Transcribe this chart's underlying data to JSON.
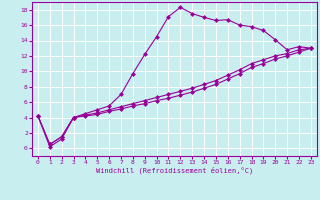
{
  "xlabel": "Windchill (Refroidissement éolien,°C)",
  "background_color": "#c8eef0",
  "grid_color": "#ffffff",
  "line_color": "#990099",
  "xlim": [
    -0.5,
    23.5
  ],
  "ylim": [
    -1,
    19
  ],
  "xticks": [
    0,
    1,
    2,
    3,
    4,
    5,
    6,
    7,
    8,
    9,
    10,
    11,
    12,
    13,
    14,
    15,
    16,
    17,
    18,
    19,
    20,
    21,
    22,
    23
  ],
  "yticks": [
    0,
    2,
    4,
    6,
    8,
    10,
    12,
    14,
    16,
    18
  ],
  "series": [
    {
      "x": [
        0,
        1,
        2,
        3,
        4,
        5,
        6,
        7,
        8,
        9,
        10,
        11,
        12,
        13,
        14,
        15,
        16,
        17,
        18,
        19,
        20,
        21,
        22,
        23
      ],
      "y": [
        4.2,
        0.2,
        1.2,
        4.0,
        4.5,
        5.0,
        5.5,
        7.0,
        9.7,
        12.2,
        14.5,
        17.1,
        18.3,
        17.5,
        17.0,
        16.6,
        16.7,
        16.0,
        15.8,
        15.3,
        14.1,
        12.8,
        13.2,
        13.0
      ]
    },
    {
      "x": [
        0,
        1,
        2,
        3,
        4,
        5,
        6,
        7,
        8,
        9,
        10,
        11,
        12,
        13,
        14,
        15,
        16,
        17,
        18,
        19,
        20,
        21,
        22,
        23
      ],
      "y": [
        4.2,
        0.5,
        1.5,
        4.0,
        4.3,
        4.6,
        5.0,
        5.4,
        5.8,
        6.2,
        6.6,
        7.0,
        7.4,
        7.8,
        8.3,
        8.8,
        9.5,
        10.2,
        11.0,
        11.5,
        12.0,
        12.3,
        12.8,
        13.0
      ]
    },
    {
      "x": [
        0,
        1,
        2,
        3,
        4,
        5,
        6,
        7,
        8,
        9,
        10,
        11,
        12,
        13,
        14,
        15,
        16,
        17,
        18,
        19,
        20,
        21,
        22,
        23
      ],
      "y": [
        4.2,
        0.5,
        1.5,
        4.0,
        4.2,
        4.4,
        4.8,
        5.1,
        5.5,
        5.8,
        6.2,
        6.5,
        6.9,
        7.3,
        7.8,
        8.3,
        9.0,
        9.7,
        10.5,
        11.0,
        11.6,
        12.0,
        12.5,
        13.0
      ]
    }
  ]
}
